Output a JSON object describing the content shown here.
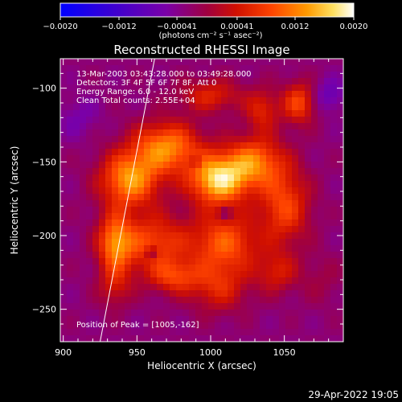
{
  "chart_data": {
    "type": "heatmap",
    "title": "Reconstructed RHESSI Image",
    "xlabel": "Heliocentric X (arcsec)",
    "ylabel": "Heliocentric Y (arcsec)",
    "xlim": [
      898,
      1090
    ],
    "ylim": [
      -272,
      -80
    ],
    "xticks": [
      900,
      950,
      1000,
      1050
    ],
    "xtick_labels": [
      "900",
      "950",
      "1000",
      "1050"
    ],
    "yticks": [
      -100,
      -150,
      -200,
      -250
    ],
    "ytick_labels": [
      "−100",
      "−150",
      "−200",
      "−250"
    ],
    "annotations": [
      "13-Mar-2003 03:43:28.000 to 03:49:28.000",
      "Detectors: 3F 4F 5F 6F 7F 8F, Att 0",
      "Energy Range: 6.0 - 12.0 keV",
      "Clean    Total counts: 2.55E+04"
    ],
    "peak_label": "Position of Peak = [1005,-162]",
    "peak": [
      1005,
      -162
    ],
    "limb_line": {
      "x1": 925,
      "y1": -272,
      "x2": 962,
      "y2": -80
    },
    "colorbar": {
      "ticks": [
        "−0.0020",
        "−0.0012",
        "−0.00041",
        "0.00041",
        "0.0012",
        "0.0020"
      ],
      "tick_values": [
        -0.002,
        -0.0012,
        -0.00041,
        0.00041,
        0.0012,
        0.002
      ],
      "range": [
        -0.002,
        0.002
      ],
      "unit_label": "(photons cm⁻² s⁻¹ asec⁻²)"
    },
    "colors": [
      "#0000ff",
      "#5a00b0",
      "#8000a0",
      "#c00000",
      "#ff3a00",
      "#ff9a00",
      "#ffe060",
      "#ffffff"
    ],
    "sources": [
      {
        "x": 1005,
        "y": -162,
        "amp": 0.00195,
        "sx": 14,
        "sy": 12
      },
      {
        "x": 945,
        "y": -162,
        "amp": 0.0016,
        "sx": 14,
        "sy": 13
      },
      {
        "x": 970,
        "y": -140,
        "amp": 0.0015,
        "sx": 16,
        "sy": 12
      },
      {
        "x": 1030,
        "y": -150,
        "amp": 0.0013,
        "sx": 14,
        "sy": 12
      },
      {
        "x": 1050,
        "y": -180,
        "amp": 0.0011,
        "sx": 12,
        "sy": 18
      },
      {
        "x": 1060,
        "y": -110,
        "amp": 0.0011,
        "sx": 8,
        "sy": 10
      },
      {
        "x": 1035,
        "y": -115,
        "amp": 0.0008,
        "sx": 8,
        "sy": 10
      },
      {
        "x": 1000,
        "y": -105,
        "amp": 0.0008,
        "sx": 15,
        "sy": 8
      },
      {
        "x": 960,
        "y": -205,
        "amp": 0.0011,
        "sx": 18,
        "sy": 14
      },
      {
        "x": 1010,
        "y": -205,
        "amp": 0.0012,
        "sx": 16,
        "sy": 14
      },
      {
        "x": 1005,
        "y": -235,
        "amp": 0.0008,
        "sx": 14,
        "sy": 12
      },
      {
        "x": 935,
        "y": -205,
        "amp": 0.0013,
        "sx": 8,
        "sy": 14
      },
      {
        "x": 935,
        "y": -235,
        "amp": 0.0006,
        "sx": 8,
        "sy": 10
      },
      {
        "x": 975,
        "y": -228,
        "amp": 0.0009,
        "sx": 12,
        "sy": 8
      },
      {
        "x": 1045,
        "y": -225,
        "amp": 0.0007,
        "sx": 10,
        "sy": 10
      },
      {
        "x": 1080,
        "y": -105,
        "amp": -0.0005,
        "sx": 8,
        "sy": 8
      },
      {
        "x": 910,
        "y": -120,
        "amp": -0.0003,
        "sx": 10,
        "sy": 10
      },
      {
        "x": 960,
        "y": -212,
        "amp": -0.0007,
        "sx": 3,
        "sy": 3
      },
      {
        "x": 1010,
        "y": -185,
        "amp": -0.0006,
        "sx": 3,
        "sy": 3
      },
      {
        "x": 990,
        "y": -150,
        "amp": -0.0005,
        "sx": 3,
        "sy": 3
      },
      {
        "x": 1075,
        "y": -230,
        "amp": 0.00025,
        "sx": 10,
        "sy": 12
      }
    ]
  },
  "footer": {
    "timestamp": "29-Apr-2022 19:05"
  }
}
